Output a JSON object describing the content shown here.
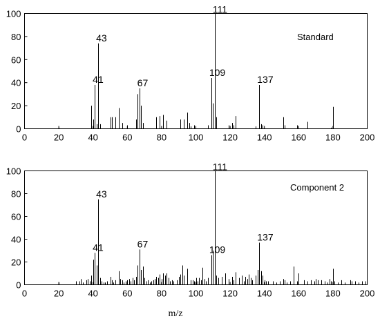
{
  "chart_data": [
    {
      "type": "bar",
      "label": "Standard",
      "xlim": [
        0,
        200
      ],
      "ylim": [
        0,
        100
      ],
      "xticks": [
        "0",
        "20",
        "40",
        "60",
        "80",
        "100",
        "120",
        "140",
        "160",
        "180",
        "200"
      ],
      "yticks": [
        "0",
        "20",
        "40",
        "60",
        "80",
        "100"
      ],
      "x": [
        20,
        39,
        40,
        41,
        42,
        43,
        44,
        50,
        51,
        53,
        55,
        57,
        60,
        65,
        66,
        67,
        68,
        69,
        77,
        79,
        81,
        83,
        91,
        93,
        95,
        96,
        97,
        99,
        107,
        109,
        110,
        111,
        112,
        119,
        121,
        122,
        123,
        135,
        137,
        138,
        139,
        151,
        152,
        159,
        165,
        179,
        180
      ],
      "values": [
        1,
        20,
        8,
        38,
        4,
        74,
        4,
        10,
        10,
        10,
        18,
        5,
        3,
        8,
        30,
        35,
        20,
        5,
        10,
        11,
        12,
        7,
        8,
        8,
        14,
        5,
        2,
        3,
        3,
        44,
        22,
        100,
        10,
        3,
        5,
        3,
        11,
        2,
        38,
        4,
        3,
        10,
        3,
        3,
        6,
        1,
        19
      ],
      "peak_labels": [
        {
          "x": 41,
          "y": 38,
          "text": "41"
        },
        {
          "x": 43,
          "y": 74,
          "text": "43"
        },
        {
          "x": 67,
          "y": 35,
          "text": "67"
        },
        {
          "x": 109,
          "y": 44,
          "text": "109"
        },
        {
          "x": 111,
          "y": 100,
          "text": "111"
        },
        {
          "x": 137,
          "y": 38,
          "text": "137"
        }
      ]
    },
    {
      "type": "bar",
      "label": "Component 2",
      "xlim": [
        0,
        200
      ],
      "ylim": [
        0,
        100
      ],
      "xticks": [
        "0",
        "20",
        "40",
        "60",
        "80",
        "100",
        "120",
        "140",
        "160",
        "180",
        "200"
      ],
      "yticks": [
        "0",
        "20",
        "40",
        "60",
        "80",
        "100"
      ],
      "xlabel": "m/z",
      "x": [
        20,
        30,
        32,
        33,
        34,
        36,
        37,
        38,
        39,
        40,
        41,
        42,
        43,
        44,
        45,
        46,
        47,
        48,
        50,
        51,
        52,
        53,
        55,
        56,
        57,
        58,
        59,
        60,
        61,
        62,
        63,
        64,
        65,
        66,
        67,
        68,
        69,
        70,
        71,
        72,
        73,
        74,
        75,
        76,
        77,
        78,
        79,
        80,
        81,
        82,
        83,
        84,
        85,
        86,
        87,
        89,
        90,
        91,
        92,
        93,
        95,
        97,
        98,
        99,
        100,
        101,
        102,
        103,
        104,
        105,
        106,
        107,
        109,
        110,
        111,
        112,
        113,
        115,
        117,
        119,
        121,
        122,
        123,
        125,
        127,
        128,
        129,
        130,
        131,
        132,
        133,
        135,
        136,
        137,
        138,
        139,
        140,
        141,
        142,
        145,
        147,
        149,
        151,
        152,
        153,
        155,
        157,
        159,
        160,
        163,
        165,
        167,
        169,
        170,
        171,
        173,
        175,
        177,
        178,
        179,
        180,
        181,
        183,
        185,
        187,
        190,
        191,
        193,
        195,
        197,
        199
      ],
      "values": [
        2,
        3,
        3,
        5,
        2,
        4,
        5,
        3,
        8,
        22,
        28,
        17,
        75,
        6,
        3,
        2,
        2,
        3,
        7,
        4,
        2,
        4,
        12,
        5,
        4,
        2,
        3,
        4,
        5,
        3,
        6,
        4,
        7,
        17,
        31,
        13,
        16,
        6,
        3,
        4,
        2,
        3,
        4,
        5,
        7,
        6,
        9,
        5,
        10,
        8,
        10,
        6,
        3,
        4,
        3,
        4,
        7,
        9,
        17,
        8,
        14,
        4,
        4,
        3,
        6,
        3,
        6,
        4,
        15,
        5,
        3,
        6,
        26,
        30,
        100,
        8,
        6,
        7,
        10,
        5,
        7,
        4,
        11,
        6,
        8,
        3,
        7,
        5,
        9,
        6,
        4,
        8,
        13,
        37,
        12,
        8,
        4,
        3,
        3,
        3,
        2,
        3,
        5,
        4,
        2,
        3,
        16,
        3,
        10,
        4,
        3,
        4,
        3,
        5,
        4,
        4,
        3,
        2,
        5,
        3,
        14,
        3,
        2,
        4,
        2,
        4,
        3,
        3,
        2,
        3,
        3
      ],
      "peak_labels": [
        {
          "x": 41,
          "y": 28,
          "text": "41"
        },
        {
          "x": 43,
          "y": 75,
          "text": "43"
        },
        {
          "x": 67,
          "y": 31,
          "text": "67"
        },
        {
          "x": 109,
          "y": 26,
          "text": "109"
        },
        {
          "x": 111,
          "y": 100,
          "text": "111"
        },
        {
          "x": 137,
          "y": 37,
          "text": "137"
        }
      ]
    }
  ]
}
